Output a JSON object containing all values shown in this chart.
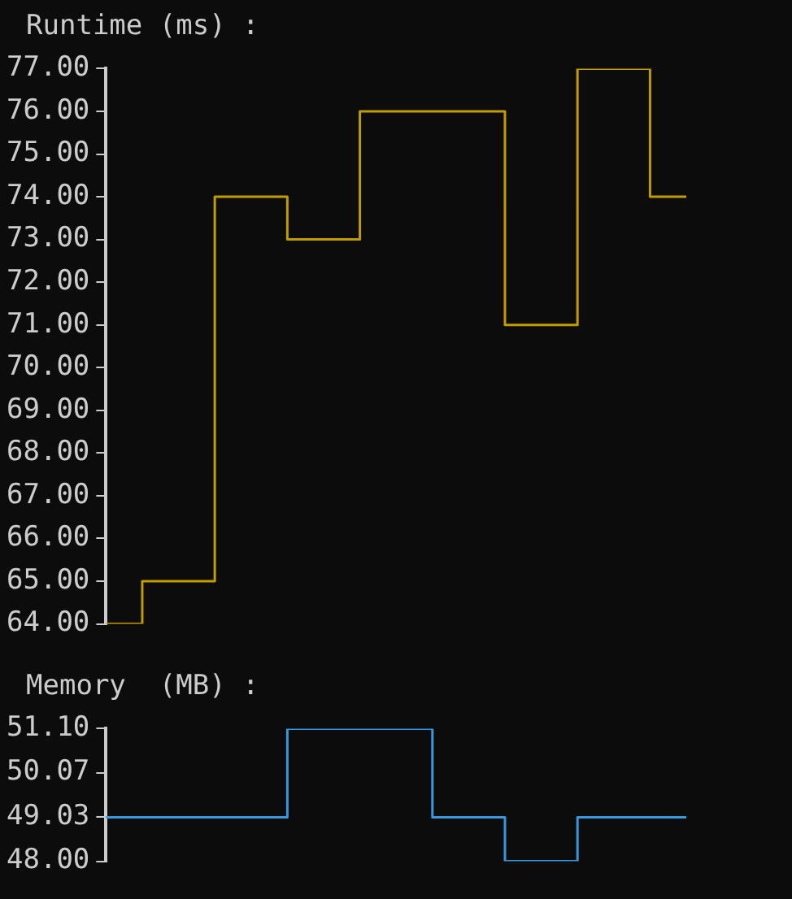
{
  "chart_data": [
    {
      "type": "step",
      "title": "Runtime (ms) :",
      "categories": [
        null,
        null,
        null,
        null,
        null,
        null,
        null,
        null,
        null
      ],
      "series": [
        {
          "color": "#c19c00",
          "values": [
            64,
            65,
            74,
            73,
            76,
            76,
            71,
            77,
            74
          ]
        }
      ],
      "ylim": [
        64,
        77
      ],
      "yticks": [
        {
          "value": 64,
          "label": "64.00"
        },
        {
          "value": 65,
          "label": "65.00"
        },
        {
          "value": 66,
          "label": "66.00"
        },
        {
          "value": 67,
          "label": "67.00"
        },
        {
          "value": 68,
          "label": "68.00"
        },
        {
          "value": 69,
          "label": "69.00"
        },
        {
          "value": 70,
          "label": "70.00"
        },
        {
          "value": 71,
          "label": "71.00"
        },
        {
          "value": 72,
          "label": "72.00"
        },
        {
          "value": 73,
          "label": "73.00"
        },
        {
          "value": 74,
          "label": "74.00"
        },
        {
          "value": 75,
          "label": "75.00"
        },
        {
          "value": 76,
          "label": "76.00"
        },
        {
          "value": 77,
          "label": "77.00"
        }
      ],
      "grid": false,
      "legend": false,
      "tick_labels": "y"
    },
    {
      "type": "step",
      "title": "Memory  (MB) :",
      "categories": [
        null,
        null,
        null,
        null,
        null,
        null,
        null,
        null,
        null
      ],
      "series": [
        {
          "color": "#3a96dd",
          "values": [
            49.03,
            49.03,
            49.03,
            51.1,
            51.1,
            49.03,
            48.0,
            49.03,
            49.03
          ]
        }
      ],
      "ylim": [
        48,
        51.1
      ],
      "yticks": [
        {
          "value": 48,
          "label": "48.00"
        },
        {
          "value": 49.03,
          "label": "49.03"
        },
        {
          "value": 50.07,
          "label": "50.07"
        },
        {
          "value": 51.1,
          "label": "51.10"
        }
      ],
      "grid": false,
      "legend": false,
      "tick_labels": "y"
    }
  ]
}
